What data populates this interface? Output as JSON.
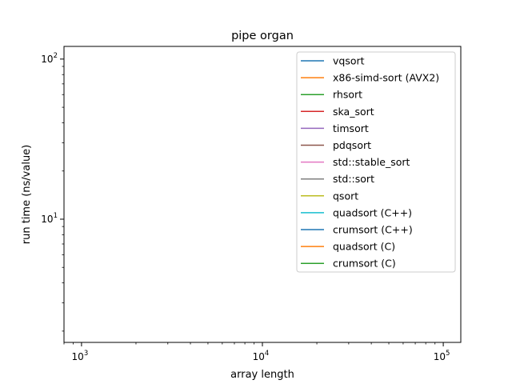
{
  "chart_data": {
    "type": "line",
    "title": "pipe organ",
    "xlabel": "array length",
    "ylabel": "run time (ns/value)",
    "xscale": "log",
    "yscale": "log",
    "xlim": [
      800,
      125000
    ],
    "ylim": [
      1.7,
      120
    ],
    "xticks": [
      {
        "base": "10",
        "exp": "3",
        "value": 1000
      },
      {
        "base": "10",
        "exp": "4",
        "value": 10000
      },
      {
        "base": "10",
        "exp": "5",
        "value": 100000
      }
    ],
    "yticks": [
      {
        "base": "10",
        "exp": "1",
        "value": 10
      },
      {
        "base": "10",
        "exp": "2",
        "value": 100
      }
    ],
    "grid": false,
    "legend_position": "top-right",
    "series": [
      {
        "name": "vqsort",
        "color": "#1f77b4",
        "x": [],
        "y": []
      },
      {
        "name": "x86-simd-sort (AVX2)",
        "color": "#ff7f0e",
        "x": [],
        "y": []
      },
      {
        "name": "rhsort",
        "color": "#2ca02c",
        "x": [],
        "y": []
      },
      {
        "name": "ska_sort",
        "color": "#d62728",
        "x": [],
        "y": []
      },
      {
        "name": "timsort",
        "color": "#9467bd",
        "x": [],
        "y": []
      },
      {
        "name": "pdqsort",
        "color": "#8c564b",
        "x": [],
        "y": []
      },
      {
        "name": "std::stable_sort",
        "color": "#e377c2",
        "x": [],
        "y": []
      },
      {
        "name": "std::sort",
        "color": "#7f7f7f",
        "x": [],
        "y": []
      },
      {
        "name": "qsort",
        "color": "#bcbd22",
        "x": [],
        "y": []
      },
      {
        "name": "quadsort (C++)",
        "color": "#17becf",
        "x": [],
        "y": []
      },
      {
        "name": "crumsort (C++)",
        "color": "#1f77b4",
        "x": [],
        "y": []
      },
      {
        "name": "quadsort (C)",
        "color": "#ff7f0e",
        "x": [],
        "y": []
      },
      {
        "name": "crumsort (C)",
        "color": "#2ca02c",
        "x": [],
        "y": []
      }
    ]
  }
}
